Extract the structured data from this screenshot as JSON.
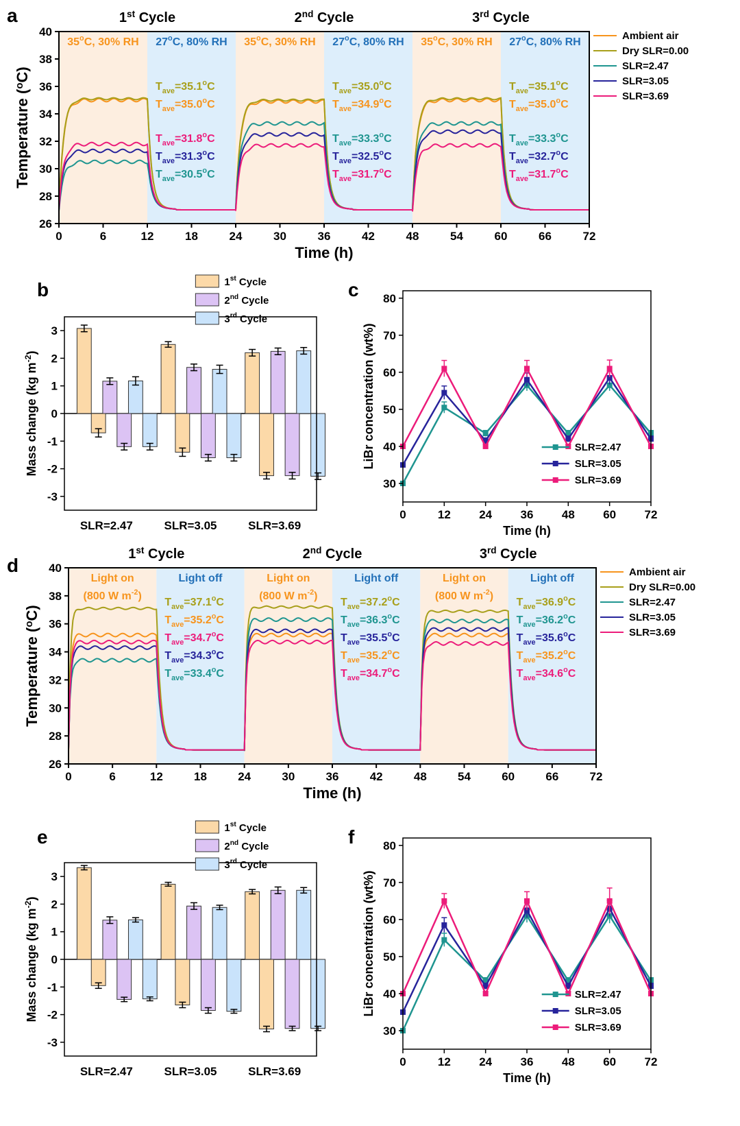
{
  "colors": {
    "ambient": "#f7941d",
    "dry": "#a89f1a",
    "slr247": "#1f9590",
    "slr305": "#27249b",
    "slr369": "#ec1c7a",
    "warm_band": "#fdeee0",
    "cool_band": "#ddeefb",
    "bar1": "#fcd9a8",
    "bar2": "#dcc3f4",
    "bar3": "#c9e3fb",
    "band_text_warm": "#f7941d",
    "band_text_cool": "#2270b8"
  },
  "panels": {
    "a": "a",
    "b": "b",
    "c": "c",
    "d": "d",
    "e": "e",
    "f": "f"
  },
  "temp_charts": [
    {
      "id": "a",
      "ylabel": "Temperature (°C)",
      "xlabel": "Time (h)",
      "cycles": [
        "1st Cycle",
        "2nd Cycle",
        "3rd Cycle"
      ],
      "band_labels": [
        "35°C, 30% RH",
        "27°C, 80% RH",
        "35°C, 30% RH",
        "27°C, 80% RH",
        "35°C, 30% RH",
        "27°C, 80% RH"
      ],
      "legend": [
        "Ambient air",
        "Dry SLR=0.00",
        "SLR=2.47",
        "SLR=3.05",
        "SLR=3.69"
      ],
      "annotations": [
        [
          {
            "text": "Tave=35.1°C",
            "series": "dry"
          },
          {
            "text": "Tave=35.0°C",
            "series": "ambient"
          },
          {
            "text": "Tave=31.8°C",
            "series": "slr369"
          },
          {
            "text": "Tave=31.3°C",
            "series": "slr305"
          },
          {
            "text": "Tave=30.5°C",
            "series": "slr247"
          }
        ],
        [
          {
            "text": "Tave=35.0°C",
            "series": "dry"
          },
          {
            "text": "Tave=34.9°C",
            "series": "ambient"
          },
          {
            "text": "Tave=33.3°C",
            "series": "slr247"
          },
          {
            "text": "Tave=32.5°C",
            "series": "slr305"
          },
          {
            "text": "Tave=31.7°C",
            "series": "slr369"
          }
        ],
        [
          {
            "text": "Tave=35.1°C",
            "series": "dry"
          },
          {
            "text": "Tave=35.0°C",
            "series": "ambient"
          },
          {
            "text": "Tave=33.3°C",
            "series": "slr247"
          },
          {
            "text": "Tave=32.7°C",
            "series": "slr305"
          },
          {
            "text": "Tave=31.7°C",
            "series": "slr369"
          }
        ]
      ]
    },
    {
      "id": "d",
      "ylabel": "Temperature (°C)",
      "xlabel": "Time (h)",
      "cycles": [
        "1st Cycle",
        "2nd Cycle",
        "3rd Cycle"
      ],
      "band_labels": [
        "Light on\n(800 W m-2)",
        "Light off",
        "Light on\n(800 W m-2)",
        "Light off",
        "Light on\n(800 W m-2)",
        "Light off"
      ],
      "legend": [
        "Ambient air",
        "Dry SLR=0.00",
        "SLR=2.47",
        "SLR=3.05",
        "SLR=3.69"
      ],
      "annotations": [
        [
          {
            "text": "Tave=37.1°C",
            "series": "dry"
          },
          {
            "text": "Tave=35.2°C",
            "series": "ambient"
          },
          {
            "text": "Tave=34.7°C",
            "series": "slr369"
          },
          {
            "text": "Tave=34.3°C",
            "series": "slr305"
          },
          {
            "text": "Tave=33.4°C",
            "series": "slr247"
          }
        ],
        [
          {
            "text": "Tave=37.2°C",
            "series": "dry"
          },
          {
            "text": "Tave=36.3°C",
            "series": "slr247"
          },
          {
            "text": "Tave=35.5°C",
            "series": "slr305"
          },
          {
            "text": "Tave=35.2°C",
            "series": "ambient"
          },
          {
            "text": "Tave=34.7°C",
            "series": "slr369"
          }
        ],
        [
          {
            "text": "Tave=36.9°C",
            "series": "dry"
          },
          {
            "text": "Tave=36.2°C",
            "series": "slr247"
          },
          {
            "text": "Tave=35.6°C",
            "series": "slr305"
          },
          {
            "text": "Tave=35.2°C",
            "series": "ambient"
          },
          {
            "text": "Tave=34.6°C",
            "series": "slr369"
          }
        ]
      ]
    }
  ],
  "chart_data": [
    {
      "id": "a",
      "type": "line",
      "xlabel": "Time (h)",
      "ylabel": "Temperature (°C)",
      "xlim": [
        0,
        72
      ],
      "ylim": [
        26,
        40
      ],
      "xticks": [
        0,
        6,
        12,
        18,
        24,
        30,
        36,
        42,
        48,
        54,
        60,
        66,
        72
      ],
      "yticks": [
        26,
        28,
        30,
        32,
        34,
        36,
        38,
        40
      ],
      "series": [
        {
          "name": "Ambient air",
          "key": "ambient",
          "plateau": [
            35.0,
            34.9,
            35.0
          ],
          "night": 27.0
        },
        {
          "name": "Dry SLR=0.00",
          "key": "dry",
          "plateau": [
            35.1,
            35.0,
            35.1
          ],
          "night": 27.0
        },
        {
          "name": "SLR=2.47",
          "key": "slr247",
          "plateau": [
            30.5,
            33.3,
            33.3
          ],
          "night": 27.0
        },
        {
          "name": "SLR=3.05",
          "key": "slr305",
          "plateau": [
            31.3,
            32.5,
            32.7
          ],
          "night": 27.0
        },
        {
          "name": "SLR=3.69",
          "key": "slr369",
          "plateau": [
            31.8,
            31.7,
            31.7
          ],
          "night": 27.0
        }
      ]
    },
    {
      "id": "b",
      "type": "bar",
      "ylabel": "Mass change (kg m-2)",
      "categories": [
        "SLR=2.47",
        "SLR=3.05",
        "SLR=3.69"
      ],
      "ylim": [
        -3.5,
        3.5
      ],
      "yticks": [
        -3,
        -2,
        -1,
        0,
        1,
        2,
        3
      ],
      "series": [
        {
          "name": "1st Cycle",
          "pos": [
            3.08,
            2.5,
            2.2
          ],
          "neg": [
            -0.7,
            -1.4,
            -2.25
          ],
          "pos_err": [
            0.12,
            0.1,
            0.12
          ],
          "neg_err": [
            0.15,
            0.15,
            0.12
          ]
        },
        {
          "name": "2nd Cycle",
          "pos": [
            1.17,
            1.67,
            2.25
          ],
          "neg": [
            -1.2,
            -1.6,
            -2.25
          ],
          "pos_err": [
            0.12,
            0.12,
            0.12
          ],
          "neg_err": [
            0.12,
            0.12,
            0.12
          ]
        },
        {
          "name": "3rd Cycle",
          "pos": [
            1.18,
            1.6,
            2.27
          ],
          "neg": [
            -1.2,
            -1.6,
            -2.27
          ],
          "pos_err": [
            0.15,
            0.15,
            0.12
          ],
          "neg_err": [
            0.12,
            0.12,
            0.12
          ]
        }
      ]
    },
    {
      "id": "c",
      "type": "line",
      "xlabel": "Time (h)",
      "ylabel": "LiBr concentration (wt%)",
      "xlim": [
        0,
        72
      ],
      "ylim": [
        25,
        82
      ],
      "x": [
        0,
        12,
        24,
        36,
        48,
        60,
        72
      ],
      "yticks": [
        30,
        40,
        50,
        60,
        70,
        80
      ],
      "series": [
        {
          "name": "SLR=2.47",
          "key": "slr247",
          "values": [
            30,
            50.5,
            43.5,
            56.5,
            43.5,
            56.5,
            43.5
          ],
          "err": [
            0,
            1.5,
            0.8,
            1.5,
            0.8,
            1.5,
            0.8
          ]
        },
        {
          "name": "SLR=3.05",
          "key": "slr305",
          "values": [
            35,
            54.5,
            41.5,
            58,
            42,
            58.5,
            42
          ],
          "err": [
            0,
            1.8,
            0.8,
            1.8,
            0.8,
            1.8,
            0.8
          ]
        },
        {
          "name": "SLR=3.69",
          "key": "slr369",
          "values": [
            40,
            61,
            40,
            61,
            40,
            61,
            40
          ],
          "err": [
            0,
            2.2,
            0.5,
            2.2,
            0.5,
            2.3,
            0.5
          ]
        }
      ]
    },
    {
      "id": "d",
      "type": "line",
      "xlabel": "Time (h)",
      "ylabel": "Temperature (°C)",
      "xlim": [
        0,
        72
      ],
      "ylim": [
        26,
        40
      ],
      "xticks": [
        0,
        6,
        12,
        18,
        24,
        30,
        36,
        42,
        48,
        54,
        60,
        66,
        72
      ],
      "yticks": [
        26,
        28,
        30,
        32,
        34,
        36,
        38,
        40
      ],
      "series": [
        {
          "name": "Ambient air",
          "key": "ambient",
          "plateau": [
            35.2,
            35.2,
            35.2
          ],
          "night": 27.0
        },
        {
          "name": "Dry SLR=0.00",
          "key": "dry",
          "plateau": [
            37.1,
            37.2,
            36.9
          ],
          "night": 27.0
        },
        {
          "name": "SLR=2.47",
          "key": "slr247",
          "plateau": [
            33.4,
            36.3,
            36.2
          ],
          "night": 27.0
        },
        {
          "name": "SLR=3.05",
          "key": "slr305",
          "plateau": [
            34.3,
            35.5,
            35.6
          ],
          "night": 27.0
        },
        {
          "name": "SLR=3.69",
          "key": "slr369",
          "plateau": [
            34.7,
            34.7,
            34.6
          ],
          "night": 27.0
        }
      ]
    },
    {
      "id": "e",
      "type": "bar",
      "ylabel": "Mass change (kg m-2)",
      "categories": [
        "SLR=2.47",
        "SLR=3.05",
        "SLR=3.69"
      ],
      "ylim": [
        -3.5,
        3.5
      ],
      "yticks": [
        -3,
        -2,
        -1,
        0,
        1,
        2,
        3
      ],
      "series": [
        {
          "name": "1st Cycle",
          "pos": [
            3.32,
            2.72,
            2.45
          ],
          "neg": [
            -0.95,
            -1.65,
            -2.52
          ],
          "pos_err": [
            0.08,
            0.07,
            0.08
          ],
          "neg_err": [
            0.1,
            0.1,
            0.1
          ]
        },
        {
          "name": "2nd Cycle",
          "pos": [
            1.42,
            1.93,
            2.5
          ],
          "neg": [
            -1.45,
            -1.85,
            -2.5
          ],
          "pos_err": [
            0.12,
            0.12,
            0.12
          ],
          "neg_err": [
            0.08,
            0.1,
            0.08
          ]
        },
        {
          "name": "3rd Cycle",
          "pos": [
            1.43,
            1.88,
            2.5
          ],
          "neg": [
            -1.43,
            -1.88,
            -2.5
          ],
          "pos_err": [
            0.08,
            0.08,
            0.1
          ],
          "neg_err": [
            0.07,
            0.07,
            0.08
          ]
        }
      ]
    },
    {
      "id": "f",
      "type": "line",
      "xlabel": "Time (h)",
      "ylabel": "LiBr concentration (wt%)",
      "xlim": [
        0,
        72
      ],
      "ylim": [
        25,
        82
      ],
      "x": [
        0,
        12,
        24,
        36,
        48,
        60,
        72
      ],
      "yticks": [
        30,
        40,
        50,
        60,
        70,
        80
      ],
      "series": [
        {
          "name": "SLR=2.47",
          "key": "slr247",
          "values": [
            30,
            54.5,
            43.5,
            61,
            43.5,
            61,
            43.5
          ],
          "err": [
            0,
            1.8,
            0.8,
            1.8,
            0.8,
            2,
            0.8
          ]
        },
        {
          "name": "SLR=3.05",
          "key": "slr305",
          "values": [
            35,
            58.5,
            42,
            62.5,
            42,
            63,
            42
          ],
          "err": [
            0,
            2,
            0.8,
            2,
            0.8,
            2.2,
            0.8
          ]
        },
        {
          "name": "SLR=3.69",
          "key": "slr369",
          "values": [
            40,
            65,
            40,
            65,
            40,
            65,
            40
          ],
          "err": [
            0,
            2,
            0.5,
            2.5,
            0.5,
            3.5,
            0.5
          ]
        }
      ]
    }
  ]
}
